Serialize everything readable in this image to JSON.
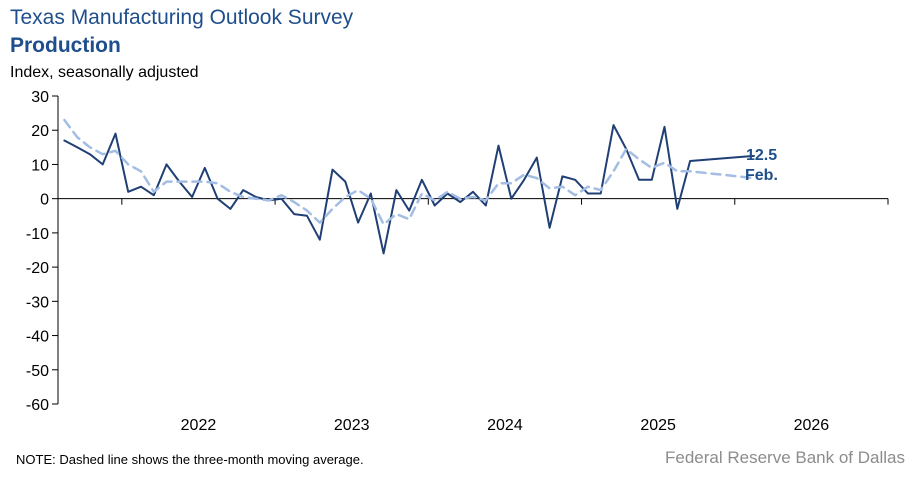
{
  "header": {
    "title": "Texas Manufacturing Outlook Survey",
    "subtitle": "Production",
    "units": "Index, seasonally adjusted"
  },
  "footer": {
    "note": "NOTE: Dashed line shows the three-month moving average.",
    "source": "Federal Reserve Bank of Dallas"
  },
  "colors": {
    "production": "#1f3f75",
    "moving_average": "#a3bde4",
    "callout": "#1f4e8c"
  },
  "chart_data": {
    "type": "line",
    "title": "Texas Manufacturing Outlook Survey",
    "subtitle": "Production",
    "ylabel": "Index, seasonally adjusted",
    "xlabel": "",
    "ylim": [
      -60,
      30
    ],
    "yticks": [
      30,
      20,
      10,
      0,
      -10,
      -20,
      -30,
      -40,
      -50,
      -60
    ],
    "x_tick_labels": [
      "2022",
      "2023",
      "2024",
      "2025",
      "2026"
    ],
    "x_start": "2021-08",
    "x_end": "2026-12",
    "grid": false,
    "legend": "none",
    "series": [
      {
        "style": "solid",
        "x": [
          "2021-08",
          "2021-09",
          "2021-10",
          "2021-11",
          "2021-12",
          "2022-01",
          "2022-02",
          "2022-03",
          "2022-04",
          "2022-05",
          "2022-06",
          "2022-07",
          "2022-08",
          "2022-09",
          "2022-10",
          "2022-11",
          "2022-12",
          "2023-01",
          "2023-02",
          "2023-03",
          "2023-04",
          "2023-05",
          "2023-06",
          "2023-07",
          "2023-08",
          "2023-09",
          "2023-10",
          "2023-11",
          "2023-12",
          "2024-01",
          "2024-02",
          "2024-03",
          "2024-04",
          "2024-05",
          "2024-06",
          "2024-07",
          "2024-08",
          "2024-09",
          "2024-10",
          "2024-11",
          "2024-12",
          "2025-01",
          "2025-02",
          "2025-03",
          "2025-04",
          "2025-05",
          "2025-06",
          "2025-07",
          "2025-08",
          "2025-09",
          "2026-02"
        ],
        "values": [
          17,
          15,
          13,
          10,
          19,
          2,
          3.5,
          1,
          10,
          5,
          0.5,
          9,
          0,
          -3,
          2.5,
          0.5,
          -0.5,
          0,
          -4.5,
          -5,
          -12,
          8.5,
          5,
          -7,
          1.5,
          -16,
          2.5,
          -3.5,
          5.5,
          -2,
          1.5,
          -1,
          2,
          -2,
          15.5,
          0,
          5.5,
          12,
          -8.5,
          6.5,
          5.5,
          1.5,
          1.5,
          21.5,
          14.5,
          5.5,
          5.5,
          21,
          -3,
          11,
          12.5
        ]
      },
      {
        "style": "dashed",
        "x": [
          "2021-08",
          "2021-09",
          "2021-10",
          "2021-11",
          "2021-12",
          "2022-01",
          "2022-02",
          "2022-03",
          "2022-04",
          "2022-05",
          "2022-06",
          "2022-07",
          "2022-08",
          "2022-09",
          "2022-10",
          "2022-11",
          "2022-12",
          "2023-01",
          "2023-02",
          "2023-03",
          "2023-04",
          "2023-05",
          "2023-06",
          "2023-07",
          "2023-08",
          "2023-09",
          "2023-10",
          "2023-11",
          "2023-12",
          "2024-01",
          "2024-02",
          "2024-03",
          "2024-04",
          "2024-05",
          "2024-06",
          "2024-07",
          "2024-08",
          "2024-09",
          "2024-10",
          "2024-11",
          "2024-12",
          "2025-01",
          "2025-02",
          "2025-03",
          "2025-04",
          "2025-05",
          "2025-06",
          "2025-07",
          "2025-08",
          "2025-09",
          "2026-02"
        ],
        "values": [
          23,
          18,
          15,
          13,
          14,
          10,
          8,
          2,
          5,
          5,
          5,
          5,
          4.5,
          2,
          0.5,
          0,
          -0.5,
          1,
          -1,
          -3.5,
          -7,
          -3,
          0.5,
          2.5,
          0,
          -7.5,
          -4.5,
          -6,
          1.5,
          -0.5,
          2,
          0,
          0.5,
          -0.5,
          4.5,
          4.5,
          7,
          6,
          3,
          3.5,
          1,
          3.5,
          2.5,
          8,
          14.5,
          11.5,
          9,
          10.5,
          8,
          8,
          6
        ]
      }
    ],
    "annotations": [
      {
        "text": "12.5"
      },
      {
        "text": "Feb."
      }
    ]
  }
}
